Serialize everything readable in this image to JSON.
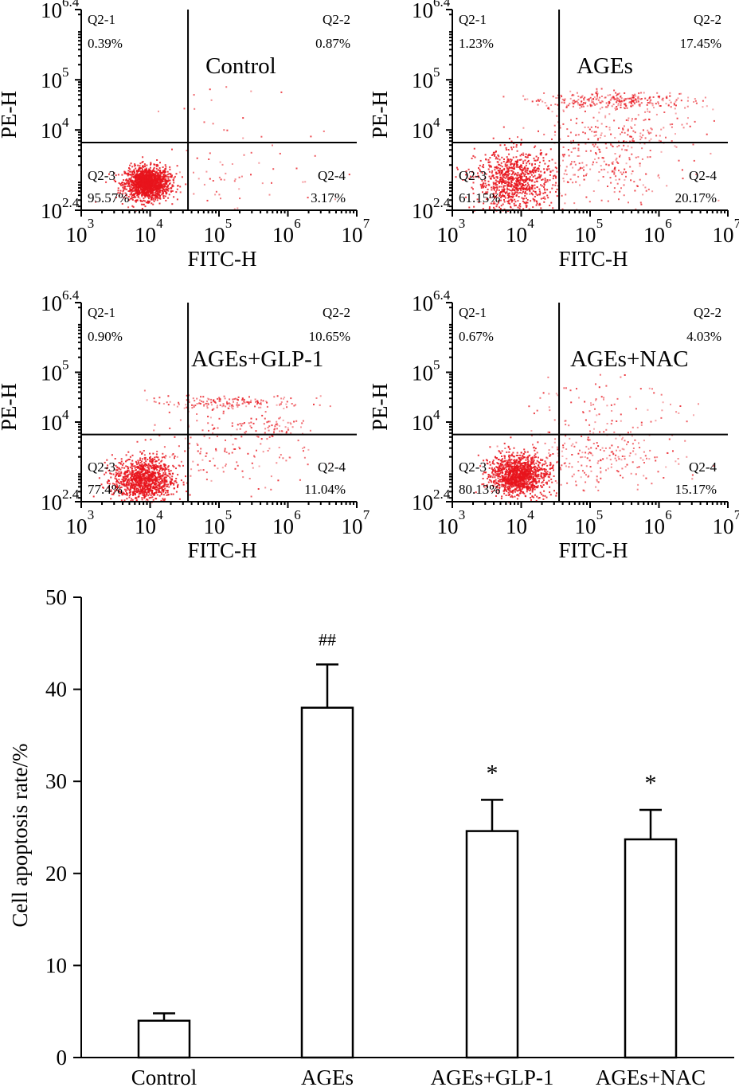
{
  "chart_data": [
    {
      "type": "scatter",
      "panel": "Control",
      "title": "Control",
      "xlabel": "FITC-H",
      "ylabel": "PE-H",
      "x_ticks": [
        "3",
        "4",
        "5",
        "6",
        "7"
      ],
      "y_ticks": [
        "2.4",
        "4",
        "5",
        "6.4"
      ],
      "xlim_log10": [
        3,
        7
      ],
      "ylim_log10": [
        2.4,
        6.4
      ],
      "quadrants": [
        {
          "name": "Q2-1",
          "value": "0.39%"
        },
        {
          "name": "Q2-2",
          "value": "0.87%"
        },
        {
          "name": "Q2-3",
          "value": "95.57%"
        },
        {
          "name": "Q2-4",
          "value": "3.17%"
        }
      ],
      "clusters": [
        {
          "cx": 3.95,
          "cy": 2.95,
          "sx": 0.16,
          "sy": 0.16,
          "n": 1500
        },
        {
          "cx": 5.0,
          "cy": 3.1,
          "sx": 0.6,
          "sy": 0.45,
          "n": 70
        },
        {
          "cx": 4.9,
          "cy": 4.5,
          "sx": 0.5,
          "sy": 0.5,
          "n": 12
        }
      ]
    },
    {
      "type": "scatter",
      "panel": "AGEs",
      "title": "AGEs",
      "xlabel": "FITC-H",
      "ylabel": "PE-H",
      "x_ticks": [
        "3",
        "4",
        "5",
        "6",
        "7"
      ],
      "y_ticks": [
        "2.4",
        "4",
        "5",
        "6.4"
      ],
      "xlim_log10": [
        3,
        7
      ],
      "ylim_log10": [
        2.4,
        6.4
      ],
      "quadrants": [
        {
          "name": "Q2-1",
          "value": "1.23%"
        },
        {
          "name": "Q2-2",
          "value": "17.45%"
        },
        {
          "name": "Q2-3",
          "value": "61.15%"
        },
        {
          "name": "Q2-4",
          "value": "20.17%"
        }
      ],
      "clusters": [
        {
          "cx": 3.9,
          "cy": 3.0,
          "sx": 0.28,
          "sy": 0.3,
          "n": 850
        },
        {
          "cx": 5.35,
          "cy": 4.6,
          "sx": 0.55,
          "sy": 0.09,
          "n": 300
        },
        {
          "cx": 5.1,
          "cy": 3.3,
          "sx": 0.55,
          "sy": 0.4,
          "n": 260
        },
        {
          "cx": 5.4,
          "cy": 4.0,
          "sx": 0.55,
          "sy": 0.2,
          "n": 120
        }
      ]
    },
    {
      "type": "scatter",
      "panel": "AGEs+GLP-1",
      "title": "AGEs+GLP-1",
      "xlabel": "FITC-H",
      "ylabel": "PE-H",
      "x_ticks": [
        "3",
        "4",
        "5",
        "6",
        "7"
      ],
      "y_ticks": [
        "2.4",
        "4",
        "5",
        "6.4"
      ],
      "xlim_log10": [
        3,
        7
      ],
      "ylim_log10": [
        2.4,
        6.4
      ],
      "quadrants": [
        {
          "name": "Q2-1",
          "value": "0.90%"
        },
        {
          "name": "Q2-2",
          "value": "10.65%"
        },
        {
          "name": "Q2-3",
          "value": "77.4%"
        },
        {
          "name": "Q2-4",
          "value": "11.04%"
        }
      ],
      "clusters": [
        {
          "cx": 3.9,
          "cy": 2.85,
          "sx": 0.22,
          "sy": 0.22,
          "n": 1100
        },
        {
          "cx": 5.1,
          "cy": 4.4,
          "sx": 0.55,
          "sy": 0.08,
          "n": 170
        },
        {
          "cx": 5.1,
          "cy": 3.4,
          "sx": 0.6,
          "sy": 0.35,
          "n": 150
        },
        {
          "cx": 5.6,
          "cy": 3.9,
          "sx": 0.35,
          "sy": 0.12,
          "n": 70
        }
      ]
    },
    {
      "type": "scatter",
      "panel": "AGEs+NAC",
      "title": "AGEs+NAC",
      "xlabel": "FITC-H",
      "ylabel": "PE-H",
      "x_ticks": [
        "3",
        "4",
        "5",
        "6",
        "7"
      ],
      "y_ticks": [
        "2.4",
        "4",
        "5",
        "6.4"
      ],
      "xlim_log10": [
        3,
        7
      ],
      "ylim_log10": [
        2.4,
        6.4
      ],
      "quadrants": [
        {
          "name": "Q2-1",
          "value": "0.67%"
        },
        {
          "name": "Q2-2",
          "value": "4.03%"
        },
        {
          "name": "Q2-3",
          "value": "80.13%"
        },
        {
          "name": "Q2-4",
          "value": "15.17%"
        }
      ],
      "clusters": [
        {
          "cx": 3.95,
          "cy": 2.95,
          "sx": 0.2,
          "sy": 0.2,
          "n": 1200
        },
        {
          "cx": 5.1,
          "cy": 3.3,
          "sx": 0.6,
          "sy": 0.3,
          "n": 230
        },
        {
          "cx": 5.2,
          "cy": 4.3,
          "sx": 0.6,
          "sy": 0.35,
          "n": 90
        }
      ]
    },
    {
      "type": "bar",
      "title": "",
      "ylabel": "Cell apoptosis rate/%",
      "xlabel": "",
      "categories": [
        "Control",
        "AGEs",
        "AGEs+GLP-1",
        "AGEs+NAC"
      ],
      "values": [
        4.0,
        38.0,
        24.6,
        23.7
      ],
      "errors": [
        0.8,
        4.7,
        3.4,
        3.2
      ],
      "annotations": [
        "",
        "##",
        "*",
        "*"
      ],
      "ylim": [
        0,
        50
      ],
      "yticks": [
        "0",
        "10",
        "20",
        "30",
        "40",
        "50"
      ]
    }
  ],
  "colors": {
    "dot": "#e8141c",
    "axis": "#000000",
    "bar_fill": "#ffffff"
  },
  "log_base": "10",
  "gate_x_log10": 4.55,
  "gate_y_log10": 3.75
}
